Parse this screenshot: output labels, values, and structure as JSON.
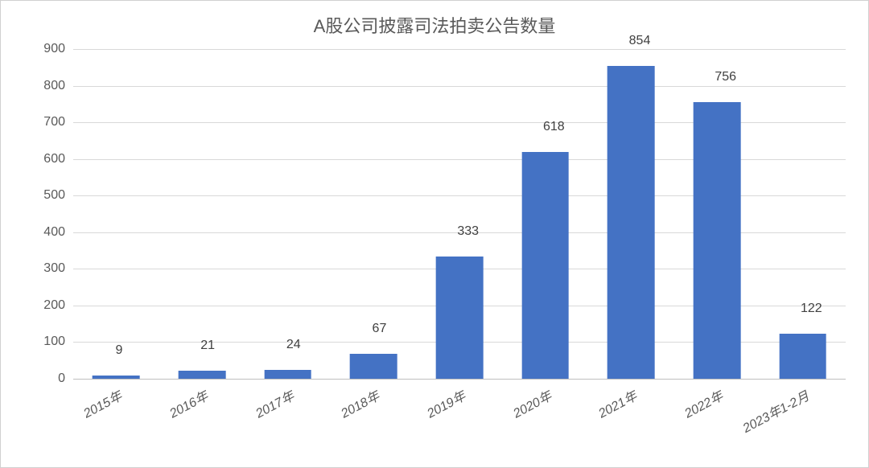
{
  "chart": {
    "type": "bar",
    "title": "A股公司披露司法拍卖公告数量",
    "title_fontsize": 22,
    "title_color": "#595959",
    "categories": [
      "2015年",
      "2016年",
      "2017年",
      "2018年",
      "2019年",
      "2020年",
      "2021年",
      "2022年",
      "2023年1-2月"
    ],
    "values": [
      9,
      21,
      24,
      67,
      333,
      618,
      854,
      756,
      122
    ],
    "bar_color": "#4472c4",
    "ylim": [
      0,
      900
    ],
    "ytick_step": 100,
    "yticks": [
      0,
      100,
      200,
      300,
      400,
      500,
      600,
      700,
      800,
      900
    ],
    "grid_color": "#d9d9d9",
    "baseline_color": "#bfbfbf",
    "axis_label_color": "#595959",
    "axis_fontsize": 16,
    "data_label_fontsize": 16,
    "data_label_color": "#404040",
    "bar_width_ratio": 0.55,
    "background_color": "#ffffff",
    "border_color": "#d0d0d0",
    "x_label_rotation_deg": -28,
    "x_label_italic": true
  }
}
